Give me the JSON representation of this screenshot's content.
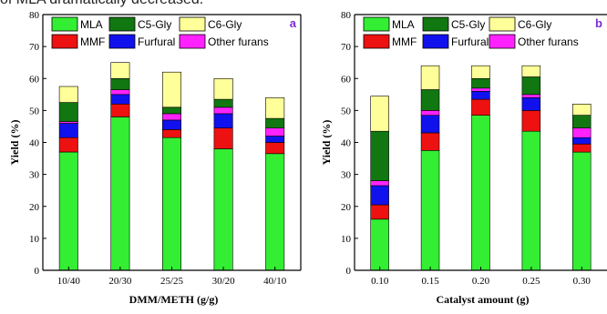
{
  "caption": "of MLA dramatically decreased.",
  "colors": {
    "MLA": "#33ee33",
    "C5-Gly": "#117711",
    "C6-Gly": "#ffff99",
    "MMF": "#ee1111",
    "Furfural": "#1111ee",
    "Other furans": "#ff22ff"
  },
  "chart_data": [
    {
      "type": "bar",
      "stacked": true,
      "panel_label": "a",
      "xlabel": "DMM/METH (g/g)",
      "ylabel": "Yield (%)",
      "ylim": [
        0,
        80
      ],
      "yticks": [
        0,
        10,
        20,
        30,
        40,
        50,
        60,
        70,
        80
      ],
      "categories": [
        "10/40",
        "20/30",
        "25/25",
        "30/20",
        "40/10"
      ],
      "series": [
        {
          "name": "MLA",
          "values": [
            37,
            48,
            41.5,
            38,
            36.5
          ]
        },
        {
          "name": "MMF",
          "values": [
            4.5,
            4,
            2.5,
            6.5,
            3.5
          ]
        },
        {
          "name": "Furfural",
          "values": [
            4.5,
            3,
            3,
            4.5,
            2
          ]
        },
        {
          "name": "Other furans",
          "values": [
            0.5,
            1.5,
            2,
            2,
            2.5
          ]
        },
        {
          "name": "C5-Gly",
          "values": [
            6,
            3.5,
            2,
            2.5,
            3
          ]
        },
        {
          "name": "C6-Gly",
          "values": [
            5,
            5,
            11,
            6.5,
            6.5
          ]
        }
      ],
      "legend": [
        "MLA",
        "C5-Gly",
        "C6-Gly",
        "MMF",
        "Furfural",
        "Other furans"
      ],
      "legend_position": "top"
    },
    {
      "type": "bar",
      "stacked": true,
      "panel_label": "b",
      "xlabel": "Catalyst amount (g)",
      "ylabel": "Yield (%)",
      "ylim": [
        0,
        80
      ],
      "yticks": [
        0,
        10,
        20,
        30,
        40,
        50,
        60,
        70,
        80
      ],
      "categories": [
        "0.10",
        "0.15",
        "0.20",
        "0.25",
        "0.30"
      ],
      "series": [
        {
          "name": "MLA",
          "values": [
            16,
            37.5,
            48.5,
            43.5,
            37
          ]
        },
        {
          "name": "MMF",
          "values": [
            4.5,
            5.5,
            5,
            6.5,
            2.5
          ]
        },
        {
          "name": "Furfural",
          "values": [
            6,
            5.5,
            2.5,
            4,
            2
          ]
        },
        {
          "name": "Other furans",
          "values": [
            1.5,
            1.5,
            1,
            1,
            3
          ]
        },
        {
          "name": "C5-Gly",
          "values": [
            15.5,
            6.5,
            3,
            5.5,
            4
          ]
        },
        {
          "name": "C6-Gly",
          "values": [
            11,
            7.5,
            4,
            3.5,
            3.5
          ]
        }
      ],
      "legend": [
        "MLA",
        "C5-Gly",
        "C6-Gly",
        "MMF",
        "Furfural",
        "Other furans"
      ],
      "legend_position": "top"
    }
  ]
}
